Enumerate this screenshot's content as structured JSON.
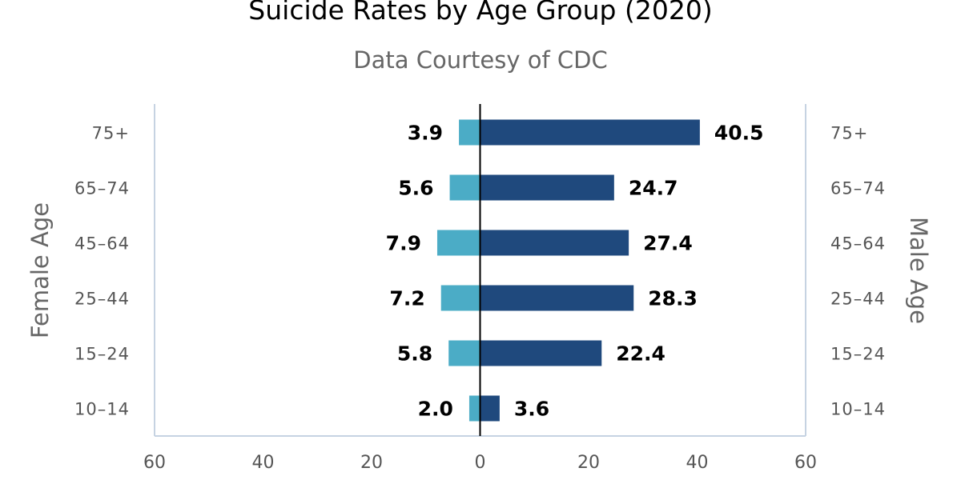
{
  "chart_data": {
    "type": "bar",
    "orientation": "horizontal-diverging",
    "title": "Suicide Rates by Age Group (2020)",
    "subtitle": "Data Courtesy of CDC",
    "left_axis_title": "Female Age",
    "right_axis_title": "Male Age",
    "categories": [
      "75+",
      "65–74",
      "45–64",
      "25–44",
      "15–24",
      "10–14"
    ],
    "series": [
      {
        "name": "Female",
        "values": [
          3.9,
          5.6,
          7.9,
          7.2,
          5.8,
          2.0
        ],
        "value_labels": [
          "3.9",
          "5.6",
          "7.9",
          "7.2",
          "5.8",
          "2.0"
        ],
        "color": "#4bacc6",
        "side": "left"
      },
      {
        "name": "Male",
        "values": [
          40.5,
          24.7,
          27.4,
          28.3,
          22.4,
          3.6
        ],
        "value_labels": [
          "40.5",
          "24.7",
          "27.4",
          "28.3",
          "22.4",
          "3.6"
        ],
        "color": "#1f497d",
        "side": "right"
      }
    ],
    "xlim": [
      -60,
      60
    ],
    "x_ticks": [
      {
        "value": -60,
        "label": "60"
      },
      {
        "value": -40,
        "label": "40"
      },
      {
        "value": -20,
        "label": "20"
      },
      {
        "value": 0,
        "label": "0"
      },
      {
        "value": 20,
        "label": "20"
      },
      {
        "value": 40,
        "label": "40"
      },
      {
        "value": 60,
        "label": "60"
      }
    ],
    "grid": false,
    "legend": "none",
    "zero_line_color": "#000000",
    "frame_color": "#c6d3e2"
  }
}
